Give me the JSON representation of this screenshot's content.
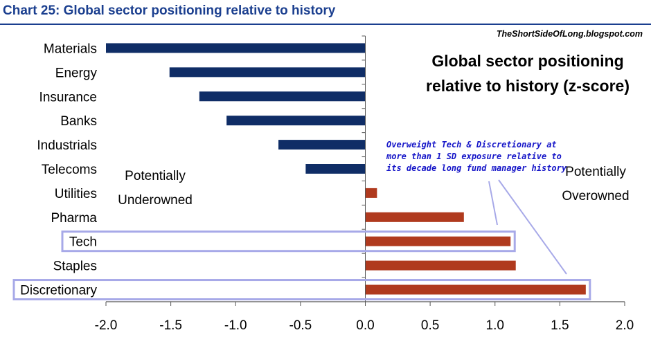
{
  "header": {
    "title": "Chart 25: Global sector positioning relative to history"
  },
  "chart_data": {
    "type": "bar",
    "orientation": "horizontal",
    "title": "Global sector positioning relative to history (z-score)",
    "title_lines": [
      "Global sector positioning",
      "relative to history (z-score)"
    ],
    "source": "TheShortSideOfLong.blogspot.com",
    "categories": [
      "Materials",
      "Energy",
      "Insurance",
      "Banks",
      "Industrials",
      "Telecoms",
      "Utilities",
      "Pharma",
      "Tech",
      "Staples",
      "Discretionary"
    ],
    "values": [
      -2.0,
      -1.51,
      -1.28,
      -1.07,
      -0.67,
      -0.46,
      0.09,
      0.76,
      1.12,
      1.16,
      1.7
    ],
    "xlim": [
      -2.0,
      2.0
    ],
    "xticks": [
      "-2.0",
      "-1.5",
      "-1.0",
      "-0.5",
      "0.0",
      "0.5",
      "1.0",
      "1.5",
      "2.0"
    ],
    "xlabel": "",
    "ylabel": "",
    "grid": false,
    "colors": {
      "negative": "#0f2d66",
      "positive": "#b03a1e",
      "highlight": "#a7a9e8",
      "annotation": "#1515c8",
      "title": "#1b3f8f"
    },
    "highlighted": [
      "Tech",
      "Discretionary"
    ],
    "annotations": {
      "underowned": [
        "Potentially",
        "Underowned"
      ],
      "overowned": [
        "Potentially",
        "Overowned"
      ],
      "callout": [
        "Overweight Tech & Discretionary at",
        "more than 1 SD exposure relative to",
        "its decade long fund manager history"
      ]
    }
  }
}
